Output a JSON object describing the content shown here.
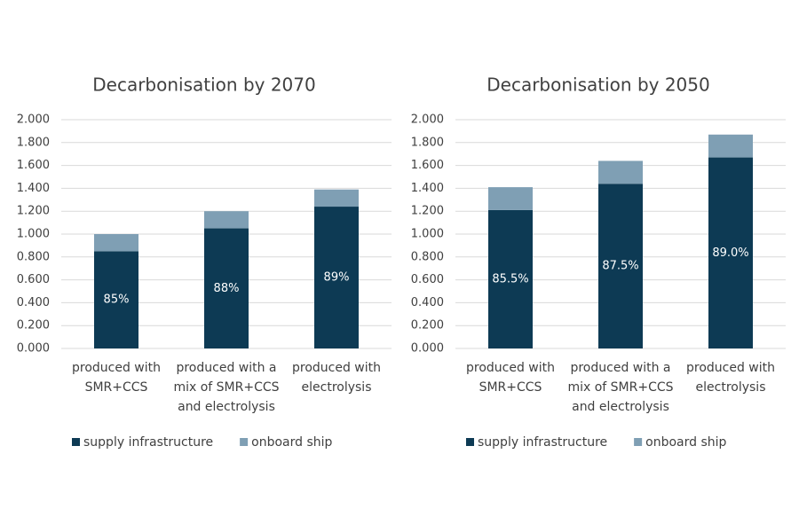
{
  "chart_data": [
    {
      "type": "bar",
      "stacked": true,
      "title": "Decarbonisation by 2070",
      "categories": [
        [
          "produced with",
          "SMR+CCS"
        ],
        [
          "produced with a",
          "mix of SMR+CCS",
          "and electrolysis"
        ],
        [
          "produced with",
          "electrolysis"
        ]
      ],
      "series": [
        {
          "name": "supply infrastructure",
          "color": "#0d3a54",
          "values": [
            0.85,
            1.05,
            1.24
          ],
          "value_labels": [
            "85%",
            "88%",
            "89%"
          ]
        },
        {
          "name": "onboard ship",
          "color": "#7f9fb4",
          "values": [
            0.15,
            0.15,
            0.15
          ]
        }
      ],
      "ylim": [
        0,
        2
      ],
      "yticks": [
        {
          "value": 0,
          "label": "0.000"
        },
        {
          "value": 0.2,
          "label": "0.200"
        },
        {
          "value": 0.4,
          "label": "0.400"
        },
        {
          "value": 0.6,
          "label": "0.600"
        },
        {
          "value": 0.8,
          "label": "0.800"
        },
        {
          "value": 1,
          "label": "1.000"
        },
        {
          "value": 1.2,
          "label": "1.200"
        },
        {
          "value": 1.4,
          "label": "1.400"
        },
        {
          "value": 1.6,
          "label": "1.600"
        },
        {
          "value": 1.8,
          "label": "1.800"
        },
        {
          "value": 2,
          "label": "2.000"
        }
      ],
      "grid": true,
      "legend": "bottom"
    },
    {
      "type": "bar",
      "stacked": true,
      "title": "Decarbonisation by 2050",
      "categories": [
        [
          "produced with",
          "SMR+CCS"
        ],
        [
          "produced with a",
          "mix of SMR+CCS",
          "and electrolysis"
        ],
        [
          "produced with",
          "electrolysis"
        ]
      ],
      "series": [
        {
          "name": "supply infrastructure",
          "color": "#0d3a54",
          "values": [
            1.21,
            1.44,
            1.67
          ],
          "value_labels": [
            "85.5%",
            "87.5%",
            "89.0%"
          ]
        },
        {
          "name": "onboard ship",
          "color": "#7f9fb4",
          "values": [
            0.2,
            0.2,
            0.2
          ]
        }
      ],
      "ylim": [
        0,
        2
      ],
      "yticks": [
        {
          "value": 0,
          "label": "0.000"
        },
        {
          "value": 0.2,
          "label": "0.200"
        },
        {
          "value": 0.4,
          "label": "0.400"
        },
        {
          "value": 0.6,
          "label": "0.600"
        },
        {
          "value": 0.8,
          "label": "0.800"
        },
        {
          "value": 1,
          "label": "1.000"
        },
        {
          "value": 1.2,
          "label": "1.200"
        },
        {
          "value": 1.4,
          "label": "1.400"
        },
        {
          "value": 1.6,
          "label": "1.600"
        },
        {
          "value": 1.8,
          "label": "1.800"
        },
        {
          "value": 2,
          "label": "2.000"
        }
      ],
      "grid": true,
      "legend": "bottom"
    }
  ]
}
